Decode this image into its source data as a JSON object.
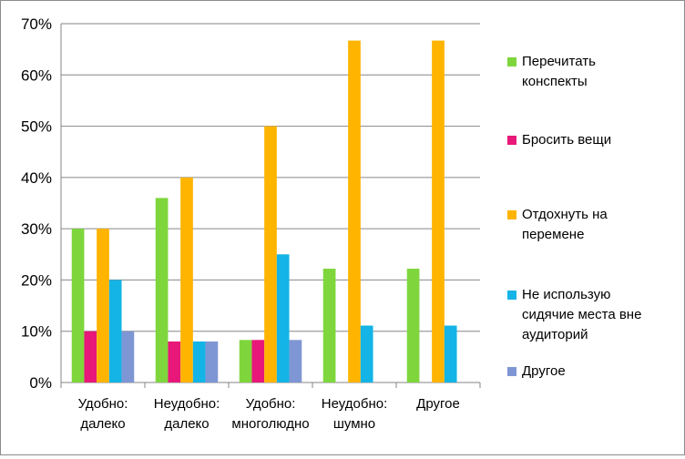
{
  "chart_data": {
    "type": "bar",
    "categories": [
      "Удобно:\nдалеко",
      "Неудобно:\nдалеко",
      "Удобно:\nмноголюдно",
      "Неудобно:\nшумно",
      "Другое"
    ],
    "series": [
      {
        "name": "Перечитать\nконспекты",
        "color": "#7ed63c",
        "values": [
          30,
          36,
          8.3,
          22.2,
          22.2
        ]
      },
      {
        "name": "Бросить вещи",
        "color": "#e8187a",
        "values": [
          10,
          8,
          8.3,
          0,
          0
        ]
      },
      {
        "name": "Отдохнуть на\nперемене",
        "color": "#ffb400",
        "values": [
          30,
          40,
          50,
          66.7,
          66.7
        ]
      },
      {
        "name": "Не использую\nсидячие места вне\nаудиторий",
        "color": "#14b4e6",
        "values": [
          20,
          8,
          25,
          11.1,
          11.1
        ]
      },
      {
        "name": "Другое",
        "color": "#7f96d4",
        "values": [
          10,
          8,
          8.3,
          0,
          0
        ]
      }
    ],
    "yticks": [
      "0%",
      "10%",
      "20%",
      "30%",
      "40%",
      "50%",
      "60%",
      "70%"
    ],
    "ylim": [
      0,
      70
    ],
    "grid": true,
    "legend_position": "right"
  }
}
